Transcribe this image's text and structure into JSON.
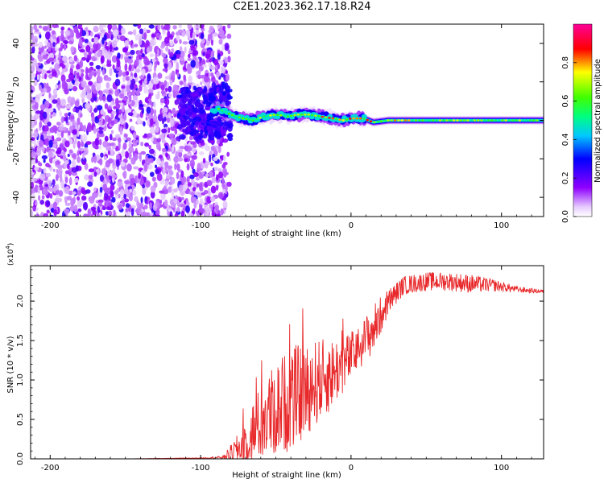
{
  "title": "C2E1.2023.362.17.18.R24",
  "chart_data": [
    {
      "type": "heatmap",
      "title": "",
      "xlabel": "Height of straight line (km)",
      "ylabel": "Frequency (Hz)",
      "xlim": [
        -213,
        128
      ],
      "ylim": [
        -50,
        50
      ],
      "xticks": [
        -200,
        -100,
        0,
        100
      ],
      "yticks": [
        -40,
        -20,
        0,
        20,
        40
      ],
      "colorbar": {
        "label": "Normalized spectral amplitude",
        "range": [
          0.0,
          1.0
        ],
        "ticks": [
          0.0,
          0.2,
          0.4,
          0.6,
          0.8
        ],
        "colormap": "rainbow (white-violet-blue-cyan-green-yellow-red-magenta)"
      },
      "signal_track": {
        "x": [
          -95,
          -88,
          -80,
          -72,
          -65,
          -58,
          -50,
          -42,
          -35,
          -28,
          -20,
          -12,
          -5,
          0,
          8,
          15,
          25,
          40,
          60,
          80,
          100,
          128
        ],
        "freq": [
          3,
          6,
          3,
          1,
          0,
          2,
          3,
          2,
          3,
          3,
          2,
          1,
          0,
          1,
          1,
          -1,
          0,
          0,
          0,
          0,
          0,
          0
        ]
      },
      "noise_region_x": [
        -213,
        -85
      ]
    },
    {
      "type": "line",
      "title": "",
      "xlabel": "Height of straight line (km)",
      "ylabel": "SNR (10 * v/v)",
      "y_multiplier": "(x10",
      "y_multiplier_exp": "4",
      "y_multiplier_close": ")",
      "xlim": [
        -213,
        128
      ],
      "ylim": [
        0,
        2.45
      ],
      "xticks": [
        -200,
        -100,
        0,
        100
      ],
      "yticks": [
        0.0,
        0.5,
        1.0,
        1.5,
        2.0
      ],
      "ytick_labels": [
        "0.0",
        "0.5",
        "1.0",
        "1.5",
        "2.0"
      ],
      "series": [
        {
          "color": "#e8282a",
          "x": [
            -213,
            -150,
            -100,
            -85,
            -75,
            -65,
            -55,
            -45,
            -35,
            -25,
            -15,
            -5,
            5,
            15,
            25,
            35,
            50,
            65,
            80,
            95,
            110,
            128
          ],
          "y": [
            0.0,
            0.0,
            0.01,
            0.02,
            0.12,
            0.35,
            0.55,
            0.7,
            0.8,
            0.95,
            1.05,
            1.2,
            1.4,
            1.65,
            2.0,
            2.2,
            2.25,
            2.25,
            2.22,
            2.2,
            2.15,
            2.12
          ],
          "noise_amplitude": [
            0.0,
            0.0,
            0.005,
            0.02,
            0.25,
            0.5,
            0.7,
            0.8,
            0.8,
            0.7,
            0.6,
            0.45,
            0.35,
            0.4,
            0.2,
            0.15,
            0.15,
            0.15,
            0.15,
            0.1,
            0.05,
            0.03
          ]
        }
      ]
    }
  ]
}
